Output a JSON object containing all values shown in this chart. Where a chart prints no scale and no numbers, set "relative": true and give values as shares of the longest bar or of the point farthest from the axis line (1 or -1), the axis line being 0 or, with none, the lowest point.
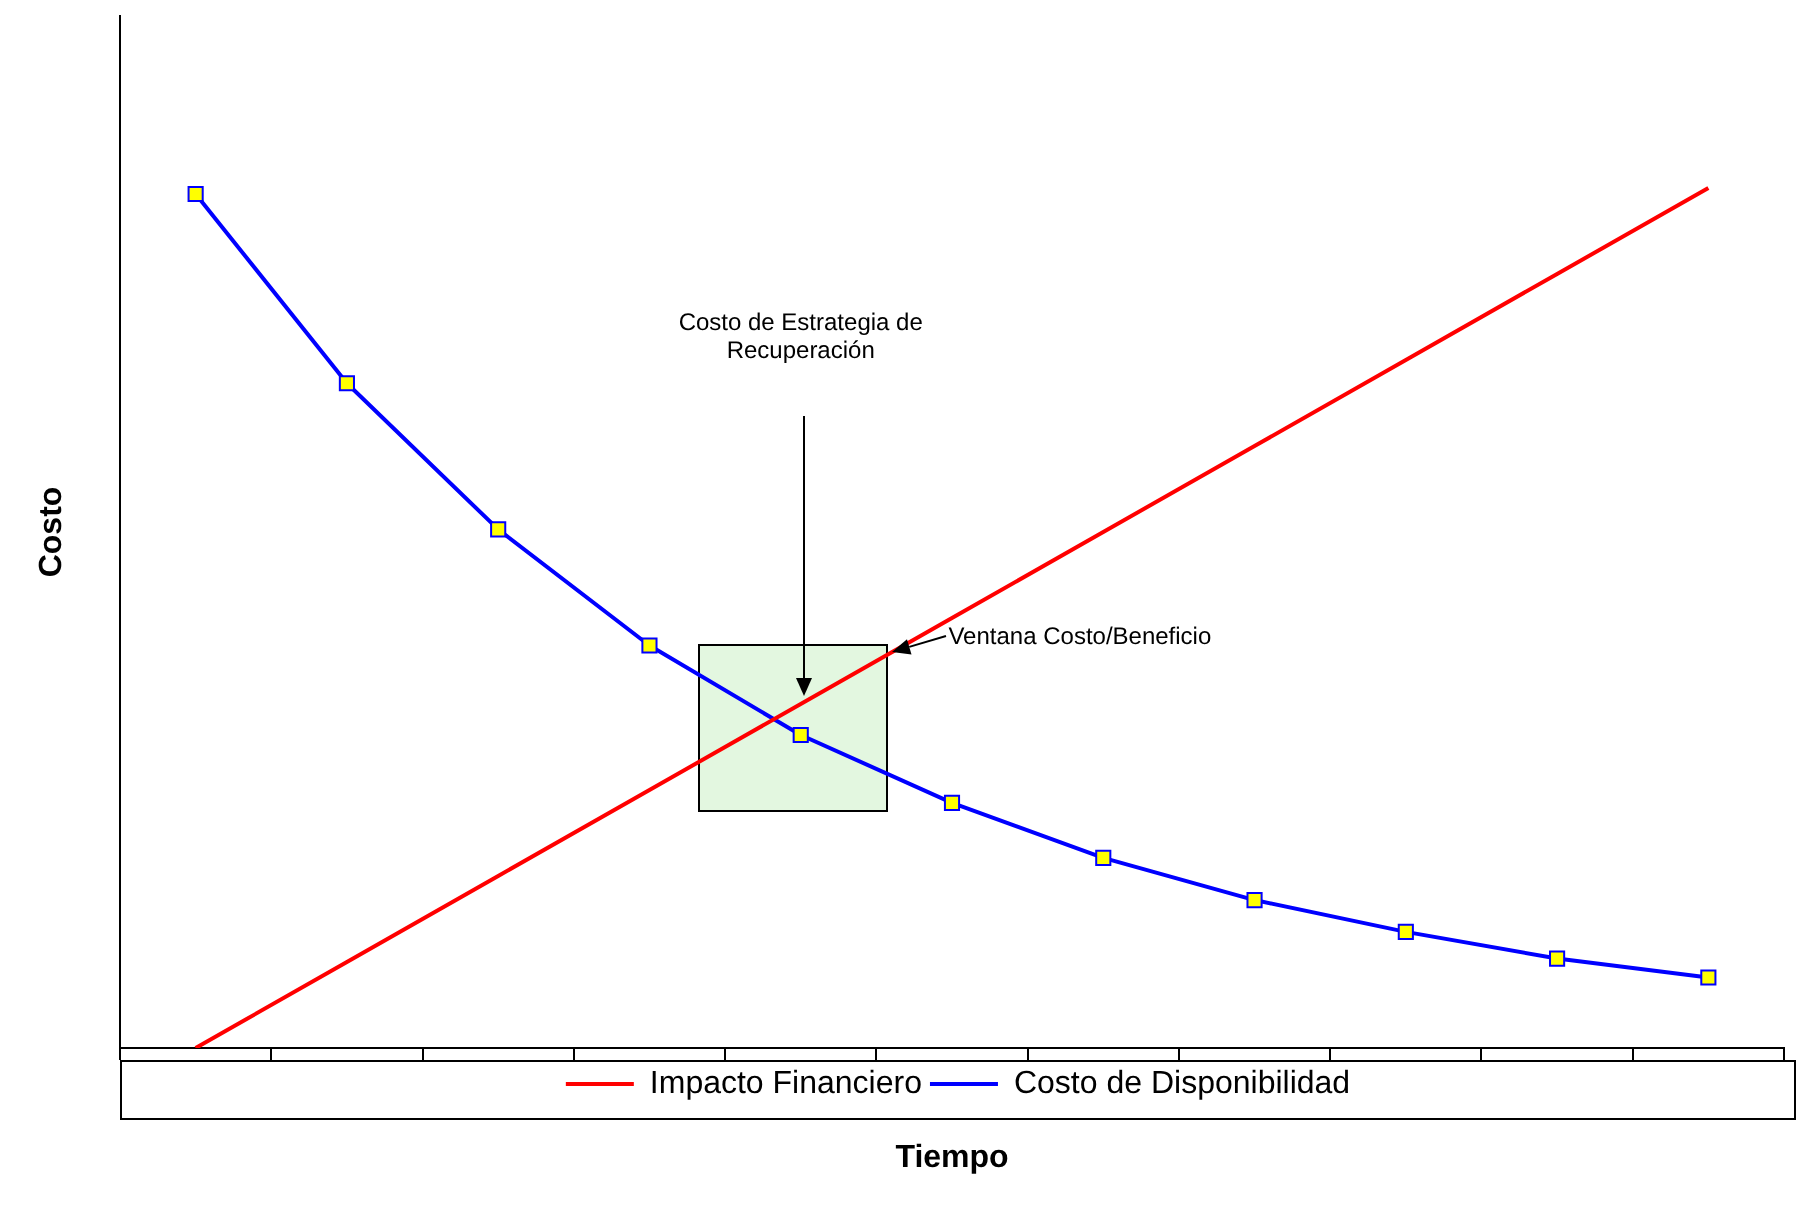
{
  "chart_data": {
    "type": "line",
    "relative": true,
    "xlabel": "Tiempo",
    "ylabel": "Costo",
    "categories": [
      null,
      null,
      null,
      null,
      null,
      null,
      null,
      null,
      null,
      null,
      null
    ],
    "series": [
      {
        "name": "Impacto Financiero",
        "color": "#ff0000",
        "marker": "none",
        "values": [
          0,
          0.1,
          0.2,
          0.3,
          0.4,
          0.5,
          0.6,
          0.7,
          0.8,
          0.9,
          1
        ]
      },
      {
        "name": "Costo de Disponibilidad",
        "color": "#0000ff",
        "marker": "square",
        "values": [
          0.993,
          0.773,
          0.603,
          0.468,
          0.364,
          0.285,
          0.221,
          0.172,
          0.135,
          0.104,
          0.082
        ]
      }
    ],
    "annotations": [
      "Costo de Estrategia de Recuperación",
      "Ventana Costo/Beneficio"
    ],
    "grid": false,
    "legend": "bottom",
    "tick_labels": false,
    "line_style": "solid"
  }
}
